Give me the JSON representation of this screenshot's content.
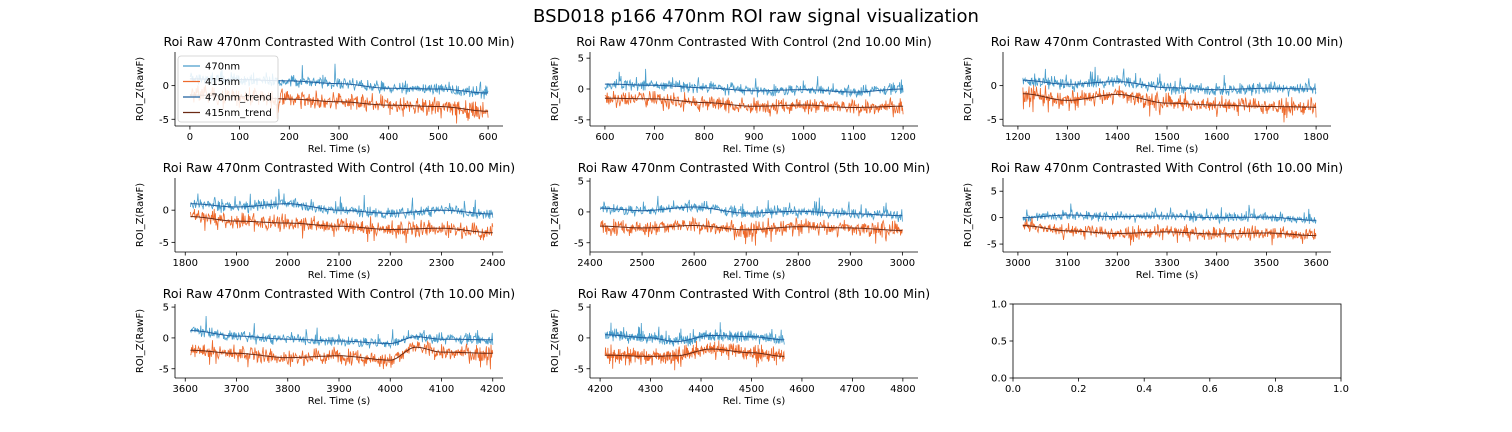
{
  "figure": {
    "title": "BSD018 p166 470nm ROI  raw signal visualization"
  },
  "colors": {
    "raw470": "#4a9ecc",
    "raw415": "#ee6a2c",
    "trend470": "#1f5f9e",
    "trend415": "#6b2a14",
    "axis": "#000000"
  },
  "chart_data": [
    {
      "type": "line",
      "title": "Roi Raw 470nm Contrasted With Control (1st 10.00 Min)",
      "xlabel": "Rel. Time (s)",
      "ylabel": "ROI_Z(RawF)",
      "xlim": [
        -30,
        630
      ],
      "ylim": [
        -6,
        5
      ],
      "xticks": [
        0,
        100,
        200,
        300,
        400,
        500,
        600
      ],
      "yticks": [
        -5,
        0
      ],
      "data_range": [
        0,
        600
      ],
      "legend": {
        "position": "upper-left",
        "entries": [
          "470nm",
          "415nm",
          "470nm_trend",
          "415nm_trend"
        ]
      },
      "series": [
        {
          "name": "470nm_trend",
          "x": [
            0,
            100,
            200,
            300,
            400,
            500,
            600
          ],
          "y": [
            1.0,
            0.9,
            0.7,
            0.3,
            -0.4,
            -0.5,
            -1.1
          ]
        },
        {
          "name": "415nm_trend",
          "x": [
            0,
            100,
            200,
            300,
            400,
            500,
            600
          ],
          "y": [
            -1.4,
            -1.6,
            -2.0,
            -2.4,
            -2.9,
            -3.1,
            -3.8
          ]
        }
      ]
    },
    {
      "type": "line",
      "title": "Roi Raw 470nm Contrasted With Control (2nd 10.00 Min)",
      "xlabel": "Rel. Time (s)",
      "ylabel": "ROI_Z(RawF)",
      "xlim": [
        570,
        1230
      ],
      "ylim": [
        -6,
        6
      ],
      "xticks": [
        600,
        700,
        800,
        900,
        1000,
        1100,
        1200
      ],
      "yticks": [
        -5,
        0,
        5
      ],
      "data_range": [
        600,
        1200
      ],
      "series": [
        {
          "name": "470nm_trend",
          "x": [
            600,
            700,
            800,
            900,
            1000,
            1100,
            1200
          ],
          "y": [
            0.8,
            0.6,
            0.2,
            -0.3,
            -0.1,
            -0.5,
            0.0
          ]
        },
        {
          "name": "415nm_trend",
          "x": [
            600,
            700,
            800,
            900,
            1000,
            1100,
            1200
          ],
          "y": [
            -1.5,
            -1.6,
            -2.2,
            -2.8,
            -2.6,
            -3.0,
            -2.8
          ]
        }
      ]
    },
    {
      "type": "line",
      "title": "Roi Raw 470nm Contrasted With Control (3th 10.00 Min)",
      "xlabel": "Rel. Time (s)",
      "ylabel": "ROI_Z(RawF)",
      "xlim": [
        1170,
        1830
      ],
      "ylim": [
        -6,
        5
      ],
      "xticks": [
        1200,
        1300,
        1400,
        1500,
        1600,
        1700,
        1800
      ],
      "yticks": [
        -5,
        0
      ],
      "data_range": [
        1210,
        1800
      ],
      "series": [
        {
          "name": "470nm_trend",
          "x": [
            1210,
            1300,
            1400,
            1500,
            1600,
            1700,
            1800
          ],
          "y": [
            0.8,
            0.2,
            0.6,
            -0.3,
            -0.6,
            -0.4,
            -0.5
          ]
        },
        {
          "name": "415nm_trend",
          "x": [
            1210,
            1300,
            1400,
            1500,
            1600,
            1700,
            1800
          ],
          "y": [
            -1.2,
            -2.2,
            -1.3,
            -2.6,
            -2.9,
            -3.1,
            -3.2
          ]
        }
      ]
    },
    {
      "type": "line",
      "title": "Roi Raw 470nm Contrasted With Control (4th 10.00 Min)",
      "xlabel": "Rel. Time (s)",
      "ylabel": "ROI_Z(RawF)",
      "xlim": [
        1780,
        2420
      ],
      "ylim": [
        -6.5,
        5
      ],
      "xticks": [
        1800,
        1900,
        2000,
        2100,
        2200,
        2300,
        2400
      ],
      "yticks": [
        -5,
        0
      ],
      "data_range": [
        1810,
        2400
      ],
      "series": [
        {
          "name": "470nm_trend",
          "x": [
            1810,
            1900,
            2000,
            2100,
            2200,
            2300,
            2400
          ],
          "y": [
            1.0,
            0.5,
            1.0,
            0.0,
            -0.5,
            0.0,
            -0.6
          ]
        },
        {
          "name": "415nm_trend",
          "x": [
            1810,
            1900,
            2000,
            2100,
            2200,
            2300,
            2400
          ],
          "y": [
            -1.0,
            -1.7,
            -2.0,
            -2.5,
            -3.0,
            -2.8,
            -3.5
          ]
        }
      ]
    },
    {
      "type": "line",
      "title": "Roi Raw 470nm Contrasted With Control (5th 10.00 Min)",
      "xlabel": "Rel. Time (s)",
      "ylabel": "ROI_Z(RawF)",
      "xlim": [
        2400,
        3030
      ],
      "ylim": [
        -6.5,
        5.5
      ],
      "xticks": [
        2400,
        2500,
        2600,
        2700,
        2800,
        2900,
        3000
      ],
      "yticks": [
        -5,
        0,
        5
      ],
      "data_range": [
        2420,
        3000
      ],
      "series": [
        {
          "name": "470nm_trend",
          "x": [
            2420,
            2500,
            2600,
            2700,
            2800,
            2900,
            3000
          ],
          "y": [
            0.6,
            0.2,
            0.8,
            -0.2,
            0.1,
            -0.3,
            -0.6
          ]
        },
        {
          "name": "415nm_trend",
          "x": [
            2420,
            2500,
            2600,
            2700,
            2800,
            2900,
            3000
          ],
          "y": [
            -2.3,
            -2.6,
            -2.2,
            -2.9,
            -2.4,
            -2.6,
            -3.0
          ]
        }
      ]
    },
    {
      "type": "line",
      "title": "Roi Raw 470nm Contrasted With Control (6th 10.00 Min)",
      "xlabel": "Rel. Time (s)",
      "ylabel": "ROI_Z(RawF)",
      "xlim": [
        2970,
        3630
      ],
      "ylim": [
        -6.5,
        7.5
      ],
      "xticks": [
        3000,
        3100,
        3200,
        3300,
        3400,
        3500,
        3600
      ],
      "yticks": [
        -5,
        0,
        5
      ],
      "data_range": [
        3010,
        3600
      ],
      "series": [
        {
          "name": "470nm_trend",
          "x": [
            3010,
            3100,
            3200,
            3300,
            3400,
            3500,
            3600
          ],
          "y": [
            0.0,
            0.5,
            0.2,
            0.3,
            0.0,
            0.1,
            -0.5
          ]
        },
        {
          "name": "415nm_trend",
          "x": [
            3010,
            3100,
            3200,
            3300,
            3400,
            3500,
            3600
          ],
          "y": [
            -1.5,
            -2.5,
            -3.0,
            -2.7,
            -3.1,
            -2.9,
            -3.4
          ]
        }
      ]
    },
    {
      "type": "line",
      "title": "Roi Raw 470nm Contrasted With Control (7th 10.00 Min)",
      "xlabel": "Rel. Time (s)",
      "ylabel": "ROI_Z(RawF)",
      "xlim": [
        3580,
        4220
      ],
      "ylim": [
        -6.5,
        5.5
      ],
      "xticks": [
        3600,
        3700,
        3800,
        3900,
        4000,
        4100,
        4200
      ],
      "yticks": [
        -5,
        0,
        5
      ],
      "data_range": [
        3610,
        4200
      ],
      "series": [
        {
          "name": "470nm_trend",
          "x": [
            3610,
            3700,
            3800,
            3900,
            4000,
            4050,
            4100,
            4200
          ],
          "y": [
            1.2,
            0.3,
            -0.2,
            -0.5,
            -0.9,
            0.2,
            -0.2,
            -0.3
          ]
        },
        {
          "name": "415nm_trend",
          "x": [
            3610,
            3700,
            3800,
            3900,
            4000,
            4050,
            4100,
            4200
          ],
          "y": [
            -2.0,
            -2.5,
            -3.2,
            -2.9,
            -3.6,
            -1.5,
            -2.3,
            -2.5
          ]
        }
      ]
    },
    {
      "type": "line",
      "title": "Roi Raw 470nm Contrasted With Control (8th 10.00 Min)",
      "xlabel": "Rel. Time (s)",
      "ylabel": "ROI_Z(RawF)",
      "xlim": [
        4180,
        4830
      ],
      "ylim": [
        -6.5,
        5.5
      ],
      "xticks": [
        4200,
        4300,
        4400,
        4500,
        4600,
        4700,
        4800
      ],
      "yticks": [
        -5,
        0,
        5
      ],
      "data_range": [
        4210,
        4565
      ],
      "series": [
        {
          "name": "470nm_trend",
          "x": [
            4210,
            4300,
            4350,
            4420,
            4500,
            4565
          ],
          "y": [
            0.5,
            0.0,
            -0.6,
            0.4,
            0.2,
            -0.3
          ]
        },
        {
          "name": "415nm_trend",
          "x": [
            4210,
            4300,
            4350,
            4420,
            4500,
            4565
          ],
          "y": [
            -2.8,
            -3.0,
            -2.9,
            -1.8,
            -2.4,
            -3.0
          ]
        }
      ]
    },
    {
      "type": "line",
      "title": "",
      "xlabel": "",
      "ylabel": "",
      "xlim": [
        0,
        1
      ],
      "ylim": [
        0,
        1
      ],
      "xticks": [
        0.0,
        0.2,
        0.4,
        0.6,
        0.8,
        1.0
      ],
      "yticks": [
        0.0,
        0.5,
        1.0
      ],
      "xticklabels": [
        "0.0",
        "0.2",
        "0.4",
        "0.6",
        "0.8",
        "1.0"
      ],
      "yticklabels": [
        "0.0",
        "0.5",
        "1.0"
      ],
      "empty": true,
      "series": []
    }
  ]
}
